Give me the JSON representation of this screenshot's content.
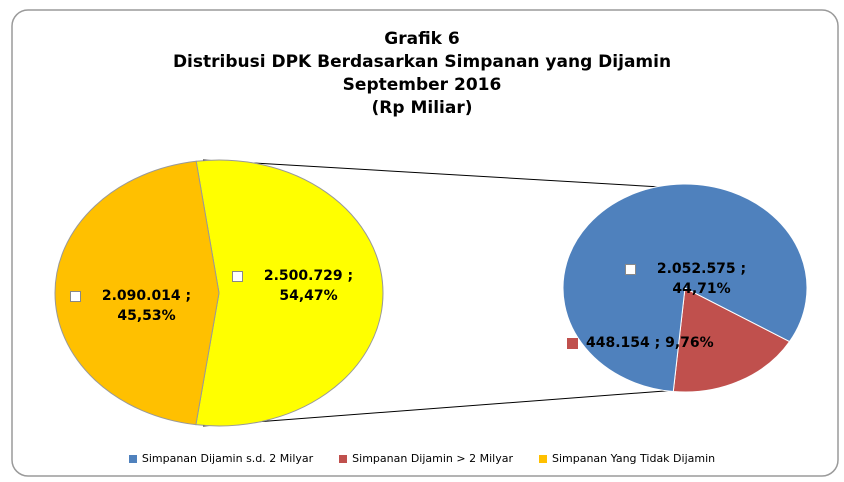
{
  "chart_data": {
    "type": "pie-of-pie",
    "title": [
      "Grafik 6",
      "Distribusi DPK Berdasarkan Simpanan yang Dijamin",
      "September 2016",
      "(Rp Miliar)"
    ],
    "categories": [
      "Simpanan Dijamin s.d. 2 Milyar",
      "Simpanan Dijamin > 2 Milyar",
      "Simpanan Yang Tidak Dijamin"
    ],
    "values": [
      2052575,
      448154,
      2090014
    ],
    "value_labels": [
      "2.052.575 ; 44,71%",
      "448.154 ; 9,76%",
      "2.090.014 ; 45,53%"
    ],
    "colors": [
      "#4f81bd",
      "#c0504d",
      "#ffc000"
    ],
    "other": {
      "value": 2500729,
      "label": "2.500.729 ; 54,47%",
      "color": "#ffff00"
    },
    "legend": "bottom"
  }
}
